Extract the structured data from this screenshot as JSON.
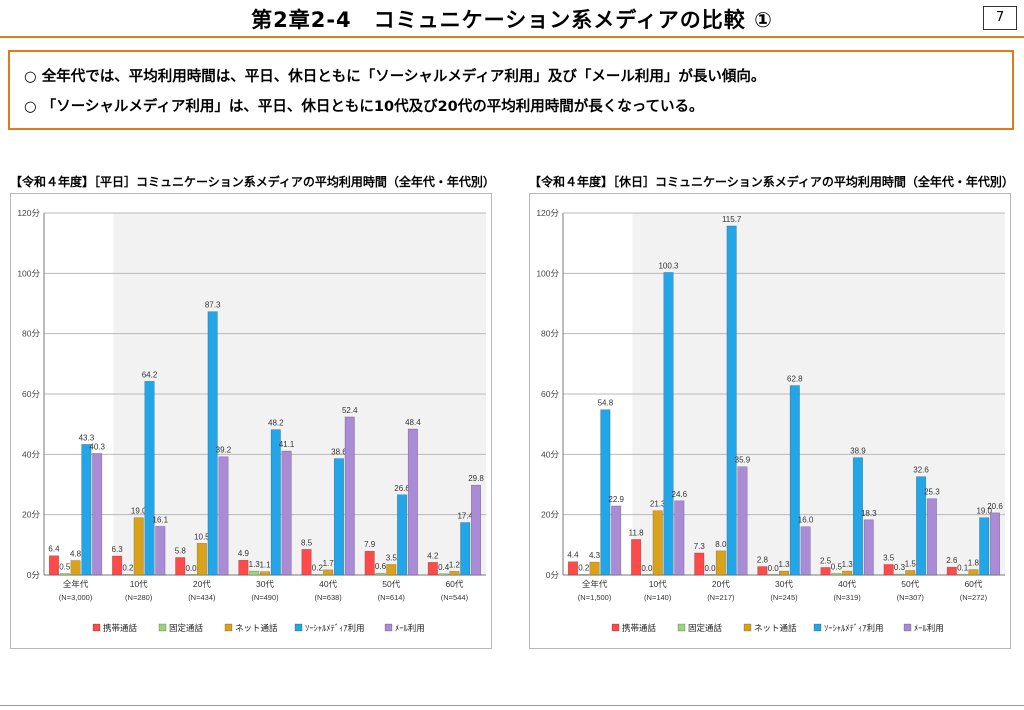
{
  "header": {
    "title": "第2章2-4　コミュニケーション系メディアの比較 ①",
    "page_number": "7"
  },
  "summary": {
    "lines": [
      "○ 全年代では、平均利用時間は、平日、休日ともに「ソーシャルメディア利用」及び「メール利用」が長い傾向。",
      "○ 「ソーシャルメディア利用」は、平日、休日ともに10代及び20代の平均利用時間が長くなっている。"
    ]
  },
  "colors": {
    "accent": "#e07b1a",
    "series": [
      "#ff4a4a",
      "#9bd27a",
      "#d9a21b",
      "#23a6e8",
      "#a98bd6"
    ]
  },
  "chart_data": [
    {
      "type": "bar",
      "title": "【令和４年度】［平日］コミュニケーション系メディアの平均利用時間（全年代・年代別）",
      "categories": [
        "全年代",
        "10代",
        "20代",
        "30代",
        "40代",
        "50代",
        "60代"
      ],
      "category_notes": [
        "(N=3,000)",
        "(N=280)",
        "(N=434)",
        "(N=490)",
        "(N=638)",
        "(N=614)",
        "(N=544)"
      ],
      "yticks": [
        "0分",
        "20分",
        "40分",
        "60分",
        "80分",
        "100分",
        "120分"
      ],
      "ylim": [
        0,
        120
      ],
      "grid": true,
      "legend_position": "bottom",
      "series": [
        {
          "name": "携帯通話",
          "values": [
            6.4,
            6.3,
            5.8,
            4.9,
            8.5,
            7.9,
            4.2
          ]
        },
        {
          "name": "固定通話",
          "values": [
            0.5,
            0.2,
            0.0,
            1.3,
            0.2,
            0.6,
            0.4
          ]
        },
        {
          "name": "ネット通話",
          "values": [
            4.8,
            19.0,
            10.5,
            1.1,
            1.7,
            3.5,
            1.2
          ]
        },
        {
          "name": "ｿｰｼｬﾙﾒﾃﾞｨｱ利用",
          "values": [
            43.3,
            64.2,
            87.3,
            48.2,
            38.6,
            26.6,
            17.4
          ]
        },
        {
          "name": "ﾒｰﾙ利用",
          "values": [
            40.3,
            16.1,
            39.2,
            41.1,
            52.4,
            48.4,
            29.8
          ]
        }
      ]
    },
    {
      "type": "bar",
      "title": "【令和４年度】［休日］コミュニケーション系メディアの平均利用時間（全年代・年代別）",
      "categories": [
        "全年代",
        "10代",
        "20代",
        "30代",
        "40代",
        "50代",
        "60代"
      ],
      "category_notes": [
        "(N=1,500)",
        "(N=140)",
        "(N=217)",
        "(N=245)",
        "(N=319)",
        "(N=307)",
        "(N=272)"
      ],
      "yticks": [
        "0分",
        "20分",
        "40分",
        "60分",
        "80分",
        "100分",
        "120分"
      ],
      "ylim": [
        0,
        120
      ],
      "grid": true,
      "legend_position": "bottom",
      "series": [
        {
          "name": "携帯通話",
          "values": [
            4.4,
            11.8,
            7.3,
            2.8,
            2.5,
            3.5,
            2.6
          ]
        },
        {
          "name": "固定通話",
          "values": [
            0.2,
            0.0,
            0.0,
            0.0,
            0.5,
            0.3,
            0.1
          ]
        },
        {
          "name": "ネット通話",
          "values": [
            4.3,
            21.3,
            8.0,
            1.3,
            1.3,
            1.5,
            1.8
          ]
        },
        {
          "name": "ｿｰｼｬﾙﾒﾃﾞｨｱ利用",
          "values": [
            54.8,
            100.3,
            115.7,
            62.8,
            38.9,
            32.6,
            19.0
          ]
        },
        {
          "name": "ﾒｰﾙ利用",
          "values": [
            22.9,
            24.6,
            35.9,
            16.0,
            18.3,
            25.3,
            20.6
          ]
        }
      ]
    }
  ]
}
